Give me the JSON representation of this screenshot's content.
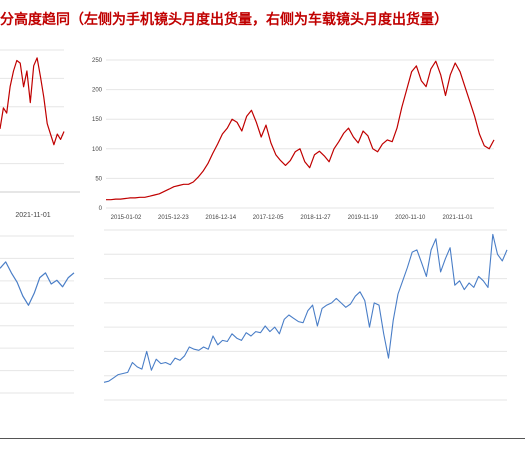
{
  "page": {
    "title": "分高度趋同（左侧为手机镜头月度出货量，右侧为车载镜头月度出货量）"
  },
  "colors": {
    "title_red": "#c00000",
    "series_red": "#c00000",
    "series_blue": "#4a7ec7",
    "grid": "#e6e6e6",
    "axis_text": "#444444",
    "rule": "#555555"
  },
  "chart_data": [
    {
      "type": "line",
      "panel": "top-left (cropped)",
      "x_tick_labels": [
        "2021-11-01"
      ],
      "series": [
        {
          "values": [
            120,
            160,
            150,
            200,
            230,
            250,
            245,
            200,
            230,
            170,
            240,
            255,
            220,
            180,
            130,
            110,
            90,
            110,
            100,
            115
          ]
        }
      ]
    },
    {
      "type": "line",
      "panel": "top-right",
      "ylim": [
        0,
        250
      ],
      "y_tick_labels": [
        "250",
        "200",
        "150",
        "100",
        "50",
        "0"
      ],
      "x_tick_labels": [
        "2015-01-02",
        "2015-12-23",
        "2016-12-14",
        "2017-12-05",
        "2018-11-27",
        "2019-11-19",
        "2020-11-10",
        "2021-11-01"
      ],
      "series": [
        {
          "values": [
            14,
            14,
            15,
            15,
            16,
            17,
            17,
            18,
            18,
            20,
            22,
            24,
            28,
            32,
            36,
            38,
            40,
            40,
            44,
            52,
            62,
            75,
            92,
            108,
            125,
            135,
            150,
            145,
            130,
            155,
            165,
            145,
            120,
            140,
            110,
            90,
            80,
            72,
            80,
            95,
            100,
            78,
            68,
            90,
            96,
            88,
            78,
            100,
            112,
            126,
            135,
            120,
            110,
            130,
            122,
            100,
            95,
            108,
            115,
            112,
            135,
            170,
            200,
            230,
            240,
            215,
            205,
            235,
            248,
            225,
            190,
            225,
            245,
            230,
            205,
            180,
            155,
            125,
            105,
            100,
            115
          ]
        }
      ]
    },
    {
      "type": "line",
      "panel": "bottom-left (cropped)",
      "series": [
        {
          "values": [
            55,
            62,
            50,
            40,
            25,
            15,
            28,
            45,
            50,
            38,
            42,
            35,
            45,
            50
          ]
        }
      ]
    },
    {
      "type": "line",
      "panel": "bottom-right",
      "y_tick_labels_unreadable": true,
      "series": [
        {
          "values": [
            1.0,
            1.05,
            1.2,
            1.35,
            1.4,
            1.45,
            1.9,
            1.7,
            1.6,
            2.4,
            1.55,
            2.05,
            1.85,
            1.9,
            1.8,
            2.1,
            2.0,
            2.2,
            2.6,
            2.5,
            2.45,
            2.6,
            2.5,
            3.1,
            2.7,
            2.9,
            2.85,
            3.2,
            3.0,
            2.9,
            3.25,
            3.1,
            3.3,
            3.25,
            3.55,
            3.3,
            3.5,
            3.2,
            3.85,
            4.05,
            3.9,
            3.75,
            3.7,
            4.25,
            4.5,
            3.55,
            4.35,
            4.5,
            4.6,
            4.8,
            4.6,
            4.4,
            4.55,
            4.9,
            5.1,
            4.7,
            3.5,
            4.6,
            4.5,
            3.2,
            2.1,
            3.8,
            5.0,
            5.6,
            6.2,
            6.9,
            7.0,
            6.4,
            5.8,
            7.0,
            7.5,
            6.0,
            6.6,
            7.1,
            5.4,
            5.6,
            5.2,
            5.5,
            5.3,
            5.8,
            5.6,
            5.3,
            7.7,
            6.8,
            6.5,
            7.0
          ]
        }
      ]
    }
  ]
}
